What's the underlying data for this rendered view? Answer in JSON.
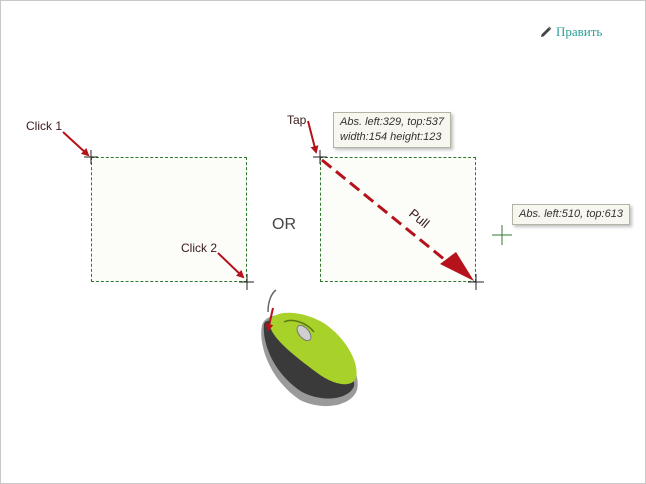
{
  "edit": {
    "label": "Править"
  },
  "labels": {
    "click1": "Click 1",
    "click2": "Click 2",
    "tap": "Tap",
    "or": "OR",
    "pull": "Pull"
  },
  "tooltips": {
    "start_line1": "Abs. left:329, top:537",
    "start_line2": "width:154 height:123",
    "end": "Abs. left:510, top:613"
  },
  "colors": {
    "arrow": "#b5121b",
    "dashed_border": "#2f7a2f",
    "link": "#2a9f96",
    "mouse_body": "#a8d12a"
  },
  "icons": [
    "pencil-icon",
    "crosshair-icon",
    "mouse-icon"
  ]
}
